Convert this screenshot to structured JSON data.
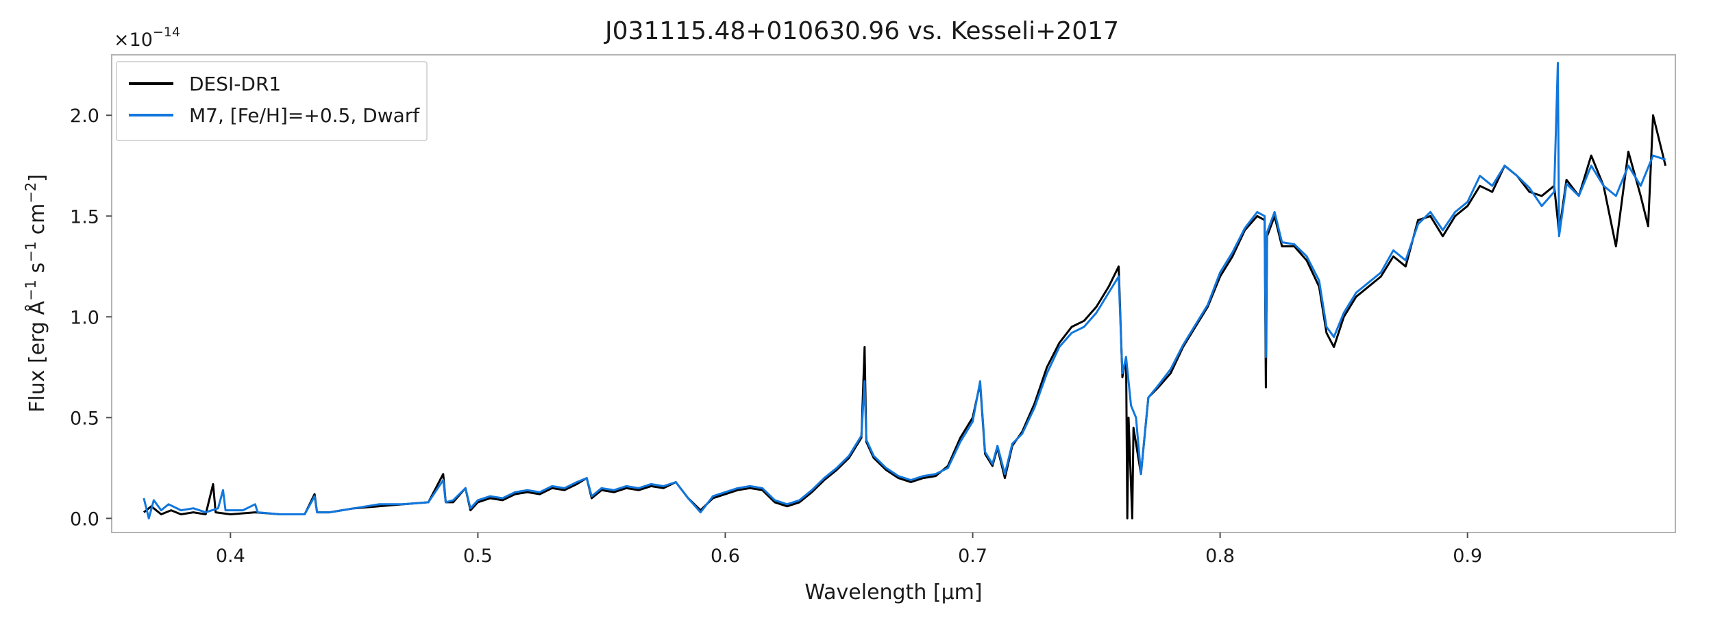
{
  "chart_data": {
    "type": "line",
    "title": "J031115.48+010630.96 vs. Kesseli+2017",
    "xlabel": "Wavelength [µm]",
    "ylabel_main": "Flux [erg Å",
    "ylabel_s": " s",
    "ylabel_cm": " cm",
    "ylabel_end": "]",
    "ylabel_exp_neg1": "−1",
    "ylabel_exp_neg2": "−2",
    "y_offset_base": "×10",
    "y_offset_exp": "−14",
    "xlim": [
      0.352,
      0.984
    ],
    "ylim": [
      -0.07,
      2.3
    ],
    "x_ticks": [
      0.4,
      0.5,
      0.6,
      0.7,
      0.8,
      0.9
    ],
    "x_tick_labels": [
      "0.4",
      "0.5",
      "0.6",
      "0.7",
      "0.8",
      "0.9"
    ],
    "y_ticks": [
      0.0,
      0.5,
      1.0,
      1.5,
      2.0
    ],
    "y_tick_labels": [
      "0.0",
      "0.5",
      "1.0",
      "1.5",
      "2.0"
    ],
    "grid": false,
    "legend_position": "top-left",
    "series": [
      {
        "name": "DESI-DR1",
        "color": "#000000",
        "points": [
          [
            0.365,
            0.03
          ],
          [
            0.368,
            0.06
          ],
          [
            0.372,
            0.02
          ],
          [
            0.376,
            0.04
          ],
          [
            0.38,
            0.02
          ],
          [
            0.385,
            0.03
          ],
          [
            0.39,
            0.02
          ],
          [
            0.393,
            0.17
          ],
          [
            0.394,
            0.03
          ],
          [
            0.4,
            0.02
          ],
          [
            0.41,
            0.03
          ],
          [
            0.42,
            0.02
          ],
          [
            0.43,
            0.02
          ],
          [
            0.434,
            0.12
          ],
          [
            0.435,
            0.03
          ],
          [
            0.44,
            0.03
          ],
          [
            0.45,
            0.05
          ],
          [
            0.46,
            0.06
          ],
          [
            0.47,
            0.07
          ],
          [
            0.48,
            0.08
          ],
          [
            0.486,
            0.22
          ],
          [
            0.487,
            0.08
          ],
          [
            0.49,
            0.08
          ],
          [
            0.495,
            0.15
          ],
          [
            0.497,
            0.04
          ],
          [
            0.5,
            0.08
          ],
          [
            0.505,
            0.1
          ],
          [
            0.51,
            0.09
          ],
          [
            0.515,
            0.12
          ],
          [
            0.52,
            0.13
          ],
          [
            0.525,
            0.12
          ],
          [
            0.53,
            0.15
          ],
          [
            0.535,
            0.14
          ],
          [
            0.54,
            0.17
          ],
          [
            0.544,
            0.2
          ],
          [
            0.546,
            0.1
          ],
          [
            0.55,
            0.14
          ],
          [
            0.555,
            0.13
          ],
          [
            0.56,
            0.15
          ],
          [
            0.565,
            0.14
          ],
          [
            0.57,
            0.16
          ],
          [
            0.575,
            0.15
          ],
          [
            0.58,
            0.18
          ],
          [
            0.585,
            0.1
          ],
          [
            0.59,
            0.04
          ],
          [
            0.595,
            0.1
          ],
          [
            0.6,
            0.12
          ],
          [
            0.605,
            0.14
          ],
          [
            0.61,
            0.15
          ],
          [
            0.615,
            0.14
          ],
          [
            0.62,
            0.08
          ],
          [
            0.625,
            0.06
          ],
          [
            0.63,
            0.08
          ],
          [
            0.635,
            0.13
          ],
          [
            0.64,
            0.19
          ],
          [
            0.645,
            0.24
          ],
          [
            0.65,
            0.3
          ],
          [
            0.655,
            0.4
          ],
          [
            0.6563,
            0.85
          ],
          [
            0.657,
            0.38
          ],
          [
            0.66,
            0.3
          ],
          [
            0.665,
            0.24
          ],
          [
            0.67,
            0.2
          ],
          [
            0.675,
            0.18
          ],
          [
            0.68,
            0.2
          ],
          [
            0.685,
            0.21
          ],
          [
            0.69,
            0.26
          ],
          [
            0.695,
            0.4
          ],
          [
            0.7,
            0.5
          ],
          [
            0.703,
            0.67
          ],
          [
            0.705,
            0.32
          ],
          [
            0.708,
            0.26
          ],
          [
            0.71,
            0.35
          ],
          [
            0.713,
            0.2
          ],
          [
            0.716,
            0.36
          ],
          [
            0.72,
            0.43
          ],
          [
            0.725,
            0.57
          ],
          [
            0.73,
            0.75
          ],
          [
            0.735,
            0.87
          ],
          [
            0.74,
            0.95
          ],
          [
            0.745,
            0.98
          ],
          [
            0.75,
            1.05
          ],
          [
            0.755,
            1.15
          ],
          [
            0.759,
            1.25
          ],
          [
            0.7605,
            0.7
          ],
          [
            0.762,
            0.8
          ],
          [
            0.7625,
            0.0
          ],
          [
            0.763,
            0.5
          ],
          [
            0.7645,
            0.0
          ],
          [
            0.765,
            0.45
          ],
          [
            0.768,
            0.22
          ],
          [
            0.771,
            0.6
          ],
          [
            0.775,
            0.65
          ],
          [
            0.78,
            0.72
          ],
          [
            0.785,
            0.85
          ],
          [
            0.79,
            0.95
          ],
          [
            0.795,
            1.05
          ],
          [
            0.8,
            1.2
          ],
          [
            0.805,
            1.3
          ],
          [
            0.81,
            1.43
          ],
          [
            0.815,
            1.5
          ],
          [
            0.818,
            1.48
          ],
          [
            0.8185,
            0.65
          ],
          [
            0.819,
            1.4
          ],
          [
            0.822,
            1.5
          ],
          [
            0.825,
            1.35
          ],
          [
            0.83,
            1.35
          ],
          [
            0.835,
            1.28
          ],
          [
            0.84,
            1.15
          ],
          [
            0.843,
            0.92
          ],
          [
            0.846,
            0.85
          ],
          [
            0.85,
            1.0
          ],
          [
            0.855,
            1.1
          ],
          [
            0.86,
            1.15
          ],
          [
            0.865,
            1.2
          ],
          [
            0.87,
            1.3
          ],
          [
            0.875,
            1.25
          ],
          [
            0.88,
            1.48
          ],
          [
            0.885,
            1.5
          ],
          [
            0.89,
            1.4
          ],
          [
            0.895,
            1.5
          ],
          [
            0.9,
            1.55
          ],
          [
            0.905,
            1.65
          ],
          [
            0.91,
            1.62
          ],
          [
            0.915,
            1.75
          ],
          [
            0.92,
            1.7
          ],
          [
            0.925,
            1.62
          ],
          [
            0.93,
            1.6
          ],
          [
            0.935,
            1.65
          ],
          [
            0.937,
            1.42
          ],
          [
            0.94,
            1.68
          ],
          [
            0.945,
            1.6
          ],
          [
            0.95,
            1.8
          ],
          [
            0.955,
            1.65
          ],
          [
            0.96,
            1.35
          ],
          [
            0.965,
            1.82
          ],
          [
            0.97,
            1.6
          ],
          [
            0.973,
            1.45
          ],
          [
            0.975,
            2.0
          ],
          [
            0.98,
            1.75
          ]
        ]
      },
      {
        "name": "M7, [Fe/H]=+0.5, Dwarf",
        "color": "#1177dd",
        "points": [
          [
            0.365,
            0.1
          ],
          [
            0.367,
            0.0
          ],
          [
            0.369,
            0.09
          ],
          [
            0.372,
            0.04
          ],
          [
            0.375,
            0.07
          ],
          [
            0.38,
            0.04
          ],
          [
            0.385,
            0.05
          ],
          [
            0.39,
            0.03
          ],
          [
            0.395,
            0.05
          ],
          [
            0.397,
            0.14
          ],
          [
            0.398,
            0.04
          ],
          [
            0.405,
            0.04
          ],
          [
            0.41,
            0.07
          ],
          [
            0.411,
            0.03
          ],
          [
            0.42,
            0.02
          ],
          [
            0.43,
            0.02
          ],
          [
            0.434,
            0.11
          ],
          [
            0.435,
            0.03
          ],
          [
            0.44,
            0.03
          ],
          [
            0.45,
            0.05
          ],
          [
            0.46,
            0.07
          ],
          [
            0.47,
            0.07
          ],
          [
            0.48,
            0.08
          ],
          [
            0.486,
            0.19
          ],
          [
            0.487,
            0.08
          ],
          [
            0.49,
            0.09
          ],
          [
            0.495,
            0.15
          ],
          [
            0.497,
            0.05
          ],
          [
            0.5,
            0.09
          ],
          [
            0.505,
            0.11
          ],
          [
            0.51,
            0.1
          ],
          [
            0.515,
            0.13
          ],
          [
            0.52,
            0.14
          ],
          [
            0.525,
            0.13
          ],
          [
            0.53,
            0.16
          ],
          [
            0.535,
            0.15
          ],
          [
            0.54,
            0.18
          ],
          [
            0.544,
            0.2
          ],
          [
            0.546,
            0.11
          ],
          [
            0.55,
            0.15
          ],
          [
            0.555,
            0.14
          ],
          [
            0.56,
            0.16
          ],
          [
            0.565,
            0.15
          ],
          [
            0.57,
            0.17
          ],
          [
            0.575,
            0.16
          ],
          [
            0.58,
            0.18
          ],
          [
            0.585,
            0.1
          ],
          [
            0.59,
            0.03
          ],
          [
            0.595,
            0.11
          ],
          [
            0.6,
            0.13
          ],
          [
            0.605,
            0.15
          ],
          [
            0.61,
            0.16
          ],
          [
            0.615,
            0.15
          ],
          [
            0.62,
            0.09
          ],
          [
            0.625,
            0.07
          ],
          [
            0.63,
            0.09
          ],
          [
            0.635,
            0.14
          ],
          [
            0.64,
            0.2
          ],
          [
            0.645,
            0.25
          ],
          [
            0.65,
            0.31
          ],
          [
            0.655,
            0.41
          ],
          [
            0.6563,
            0.68
          ],
          [
            0.657,
            0.39
          ],
          [
            0.66,
            0.31
          ],
          [
            0.665,
            0.25
          ],
          [
            0.67,
            0.21
          ],
          [
            0.675,
            0.19
          ],
          [
            0.68,
            0.21
          ],
          [
            0.685,
            0.22
          ],
          [
            0.69,
            0.25
          ],
          [
            0.695,
            0.38
          ],
          [
            0.7,
            0.48
          ],
          [
            0.703,
            0.68
          ],
          [
            0.705,
            0.33
          ],
          [
            0.708,
            0.27
          ],
          [
            0.71,
            0.36
          ],
          [
            0.713,
            0.22
          ],
          [
            0.716,
            0.37
          ],
          [
            0.72,
            0.42
          ],
          [
            0.725,
            0.55
          ],
          [
            0.73,
            0.72
          ],
          [
            0.735,
            0.85
          ],
          [
            0.74,
            0.92
          ],
          [
            0.745,
            0.95
          ],
          [
            0.75,
            1.02
          ],
          [
            0.755,
            1.12
          ],
          [
            0.759,
            1.2
          ],
          [
            0.7605,
            0.72
          ],
          [
            0.762,
            0.8
          ],
          [
            0.764,
            0.56
          ],
          [
            0.766,
            0.5
          ],
          [
            0.768,
            0.22
          ],
          [
            0.771,
            0.6
          ],
          [
            0.775,
            0.66
          ],
          [
            0.78,
            0.74
          ],
          [
            0.785,
            0.86
          ],
          [
            0.79,
            0.96
          ],
          [
            0.795,
            1.06
          ],
          [
            0.8,
            1.22
          ],
          [
            0.805,
            1.32
          ],
          [
            0.81,
            1.44
          ],
          [
            0.815,
            1.52
          ],
          [
            0.818,
            1.5
          ],
          [
            0.8185,
            0.8
          ],
          [
            0.819,
            1.42
          ],
          [
            0.822,
            1.52
          ],
          [
            0.825,
            1.37
          ],
          [
            0.83,
            1.36
          ],
          [
            0.835,
            1.3
          ],
          [
            0.84,
            1.18
          ],
          [
            0.843,
            0.95
          ],
          [
            0.846,
            0.9
          ],
          [
            0.85,
            1.02
          ],
          [
            0.855,
            1.12
          ],
          [
            0.86,
            1.17
          ],
          [
            0.865,
            1.22
          ],
          [
            0.87,
            1.33
          ],
          [
            0.875,
            1.28
          ],
          [
            0.88,
            1.46
          ],
          [
            0.885,
            1.52
          ],
          [
            0.89,
            1.43
          ],
          [
            0.895,
            1.52
          ],
          [
            0.9,
            1.57
          ],
          [
            0.905,
            1.7
          ],
          [
            0.91,
            1.65
          ],
          [
            0.915,
            1.75
          ],
          [
            0.92,
            1.7
          ],
          [
            0.925,
            1.64
          ],
          [
            0.93,
            1.55
          ],
          [
            0.935,
            1.62
          ],
          [
            0.9365,
            2.26
          ],
          [
            0.937,
            1.4
          ],
          [
            0.94,
            1.66
          ],
          [
            0.945,
            1.6
          ],
          [
            0.95,
            1.75
          ],
          [
            0.955,
            1.65
          ],
          [
            0.96,
            1.6
          ],
          [
            0.965,
            1.75
          ],
          [
            0.97,
            1.65
          ],
          [
            0.975,
            1.8
          ],
          [
            0.98,
            1.78
          ]
        ]
      }
    ]
  }
}
